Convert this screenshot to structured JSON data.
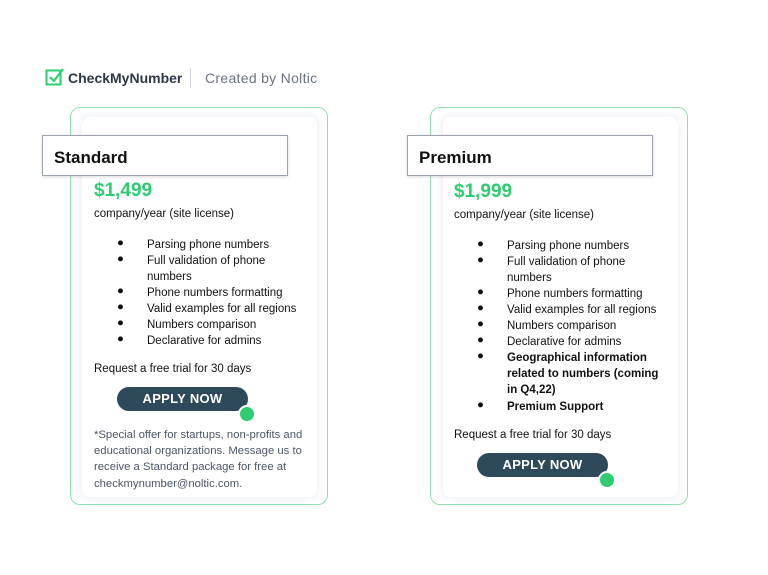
{
  "header": {
    "brand": "CheckMyNumber",
    "credit": "Created by Noltic"
  },
  "plans": [
    {
      "name": "Standard",
      "price": "$1,499",
      "period": "company/year (site license)",
      "features": [
        {
          "text": "Parsing phone numbers",
          "bold": false
        },
        {
          "text": "Full validation of phone numbers",
          "bold": false
        },
        {
          "text": "Phone numbers formatting",
          "bold": false
        },
        {
          "text": "Valid examples for all regions",
          "bold": false
        },
        {
          "text": "Numbers comparison",
          "bold": false
        },
        {
          "text": "Declarative for admins",
          "bold": false
        }
      ],
      "trial": "Request a free trial for 30 days",
      "button": "APPLY NOW",
      "note": "*Special offer for startups, non-profits and educational organizations. Message us to receive a Standard package for free at checkmynumber@noltic.com."
    },
    {
      "name": "Premium",
      "price": "$1,999",
      "period": "company/year (site license)",
      "features": [
        {
          "text": "Parsing phone numbers",
          "bold": false
        },
        {
          "text": "Full validation of phone numbers",
          "bold": false
        },
        {
          "text": "Phone numbers formatting",
          "bold": false
        },
        {
          "text": "Valid examples for all regions",
          "bold": false
        },
        {
          "text": "Numbers comparison",
          "bold": false
        },
        {
          "text": "Declarative for admins",
          "bold": false
        },
        {
          "text": "Geographical information related to numbers (coming in Q4,22)",
          "bold": true
        },
        {
          "text": "Premium Support",
          "bold": true
        }
      ],
      "trial": "Request a free trial for 30 days",
      "button": "APPLY NOW"
    }
  ]
}
